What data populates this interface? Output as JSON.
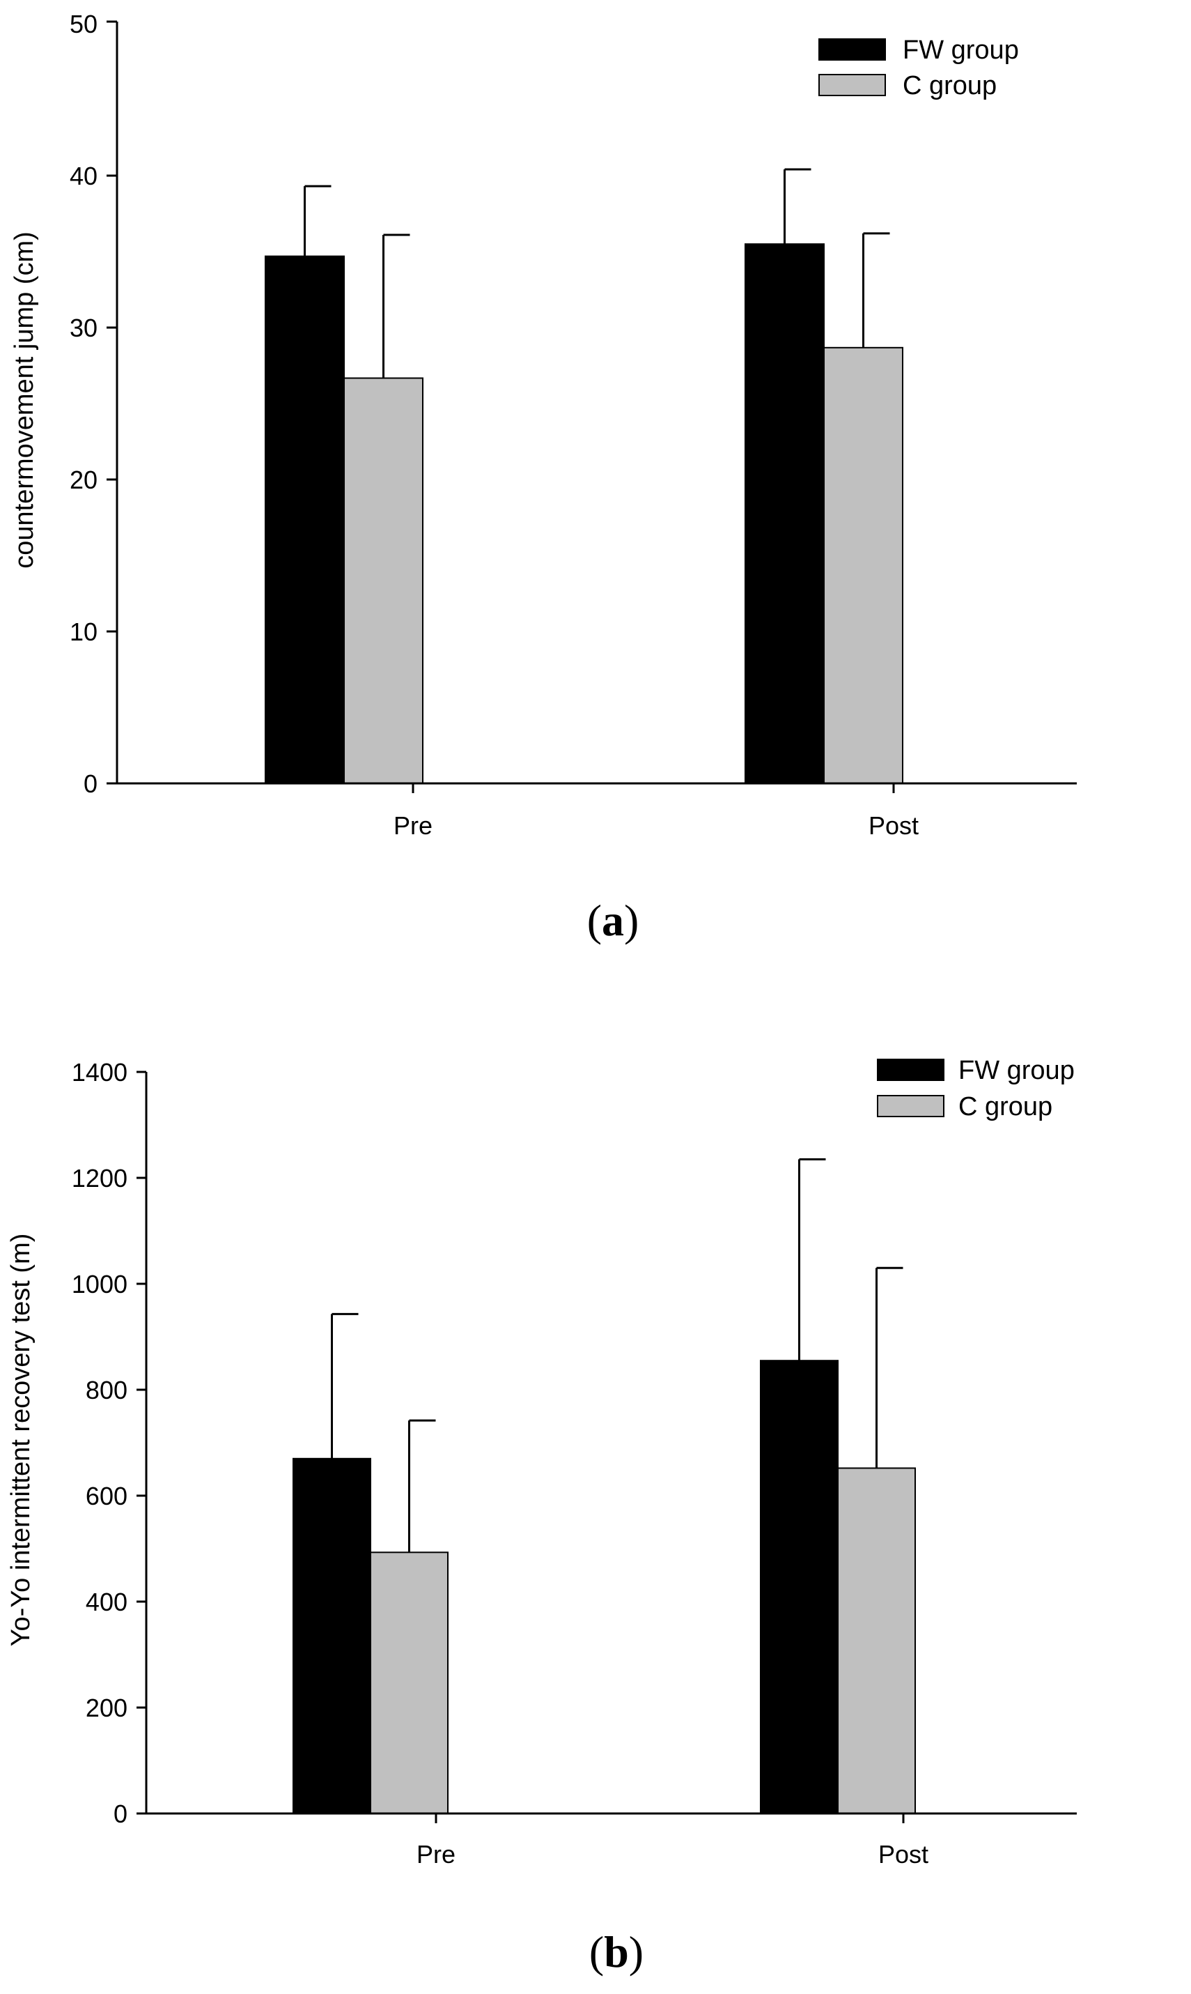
{
  "colors": {
    "fw": "#000000",
    "c": "#c0c0c0",
    "axis": "#000000"
  },
  "chart_data": [
    {
      "type": "bar",
      "panel_label": {
        "open": "(",
        "letter": "a",
        "close": ")"
      },
      "title": "",
      "xlabel": "",
      "ylabel": "countermovement jump (cm)",
      "categories": [
        "Pre",
        "Post"
      ],
      "ylim": [
        0,
        50
      ],
      "yticks": [
        0,
        10,
        20,
        30,
        40,
        50
      ],
      "legend_position": "top-right",
      "grid": false,
      "series": [
        {
          "name": "FW group",
          "color_key": "fw",
          "values": [
            34.6,
            35.4
          ],
          "errors": [
            4.6,
            4.9
          ]
        },
        {
          "name": "C group",
          "color_key": "c",
          "values": [
            26.6,
            28.6
          ],
          "errors": [
            9.4,
            7.5
          ]
        }
      ]
    },
    {
      "type": "bar",
      "panel_label": {
        "open": "(",
        "letter": "b",
        "close": ")"
      },
      "title": "",
      "xlabel": "",
      "ylabel": "Yo-Yo intermittent recovery test  (m)",
      "categories": [
        "Pre",
        "Post"
      ],
      "ylim": [
        0,
        1400
      ],
      "yticks": [
        0,
        200,
        400,
        600,
        800,
        1000,
        1200,
        1400
      ],
      "legend_position": "top-right",
      "grid": false,
      "series": [
        {
          "name": "FW group",
          "color_key": "fw",
          "values": [
            670,
            855
          ],
          "errors": [
            273,
            380
          ]
        },
        {
          "name": "C group",
          "color_key": "c",
          "values": [
            493,
            652
          ],
          "errors": [
            249,
            378
          ]
        }
      ]
    }
  ]
}
